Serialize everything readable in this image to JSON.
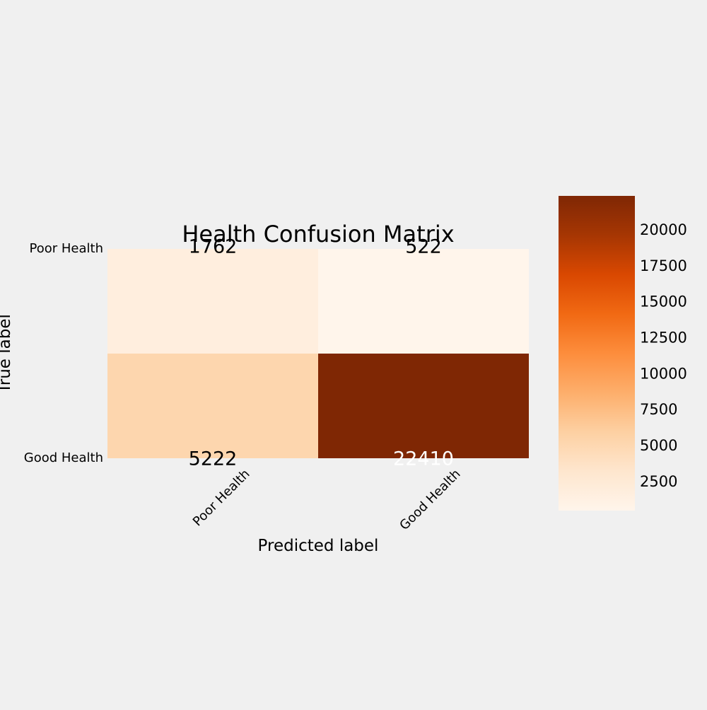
{
  "chart_data": {
    "type": "heatmap",
    "title": "Health Confusion Matrix",
    "xlabel": "Predicted label",
    "ylabel": "True label",
    "x_categories": [
      "Poor Health",
      "Good Health"
    ],
    "y_categories": [
      "Poor Health",
      "Good Health"
    ],
    "values": [
      [
        1762,
        522
      ],
      [
        5222,
        22410
      ]
    ],
    "colormap": "Oranges",
    "colorbar": {
      "range": [
        522,
        22410
      ],
      "ticks": [
        2500,
        5000,
        7500,
        10000,
        12500,
        15000,
        17500,
        20000
      ]
    },
    "grid": false
  },
  "colors": {
    "background": "#f0f0f0",
    "text_dark": "#000000",
    "text_light": "#ffffff",
    "colormap_stops": [
      "#fff5eb",
      "#fee6ce",
      "#fdd0a2",
      "#fdae6b",
      "#fd8d3c",
      "#f16913",
      "#d94801",
      "#a63603",
      "#7f2704"
    ]
  }
}
